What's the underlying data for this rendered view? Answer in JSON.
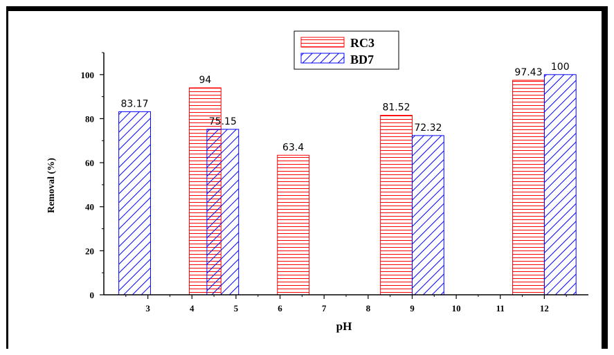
{
  "chart_data": {
    "type": "bar",
    "title": "",
    "xlabel": "pH",
    "ylabel": "Removal (%)",
    "ylim": [
      0,
      110
    ],
    "xlim": [
      2,
      13
    ],
    "x_ticks": [
      "3",
      "4",
      "5",
      "6",
      "7",
      "8",
      "9",
      "10",
      "11",
      "12"
    ],
    "y_ticks": [
      "0",
      "20",
      "40",
      "60",
      "80",
      "100"
    ],
    "grid": false,
    "legend_position": "top-center",
    "series": [
      {
        "name": "RC3",
        "color": "#ff0000",
        "pattern": "horizontal-lines",
        "points": [
          {
            "x": 4,
            "value": 94,
            "label": "94"
          },
          {
            "x": 6,
            "value": 63.4,
            "label": "63.4"
          },
          {
            "x": 9,
            "value": 81.52,
            "label": "81.52"
          },
          {
            "x": 12,
            "value": 97.43,
            "label": "97.43"
          }
        ]
      },
      {
        "name": "BD7",
        "color": "#0000ff",
        "pattern": "diagonal-lines",
        "points": [
          {
            "x": 3,
            "value": 83.17,
            "label": "83.17"
          },
          {
            "x": 5,
            "value": 75.15,
            "label": "75.15"
          },
          {
            "x": 9,
            "value": 72.32,
            "label": "72.32"
          },
          {
            "x": 12,
            "value": 100,
            "label": "100"
          }
        ]
      }
    ]
  }
}
